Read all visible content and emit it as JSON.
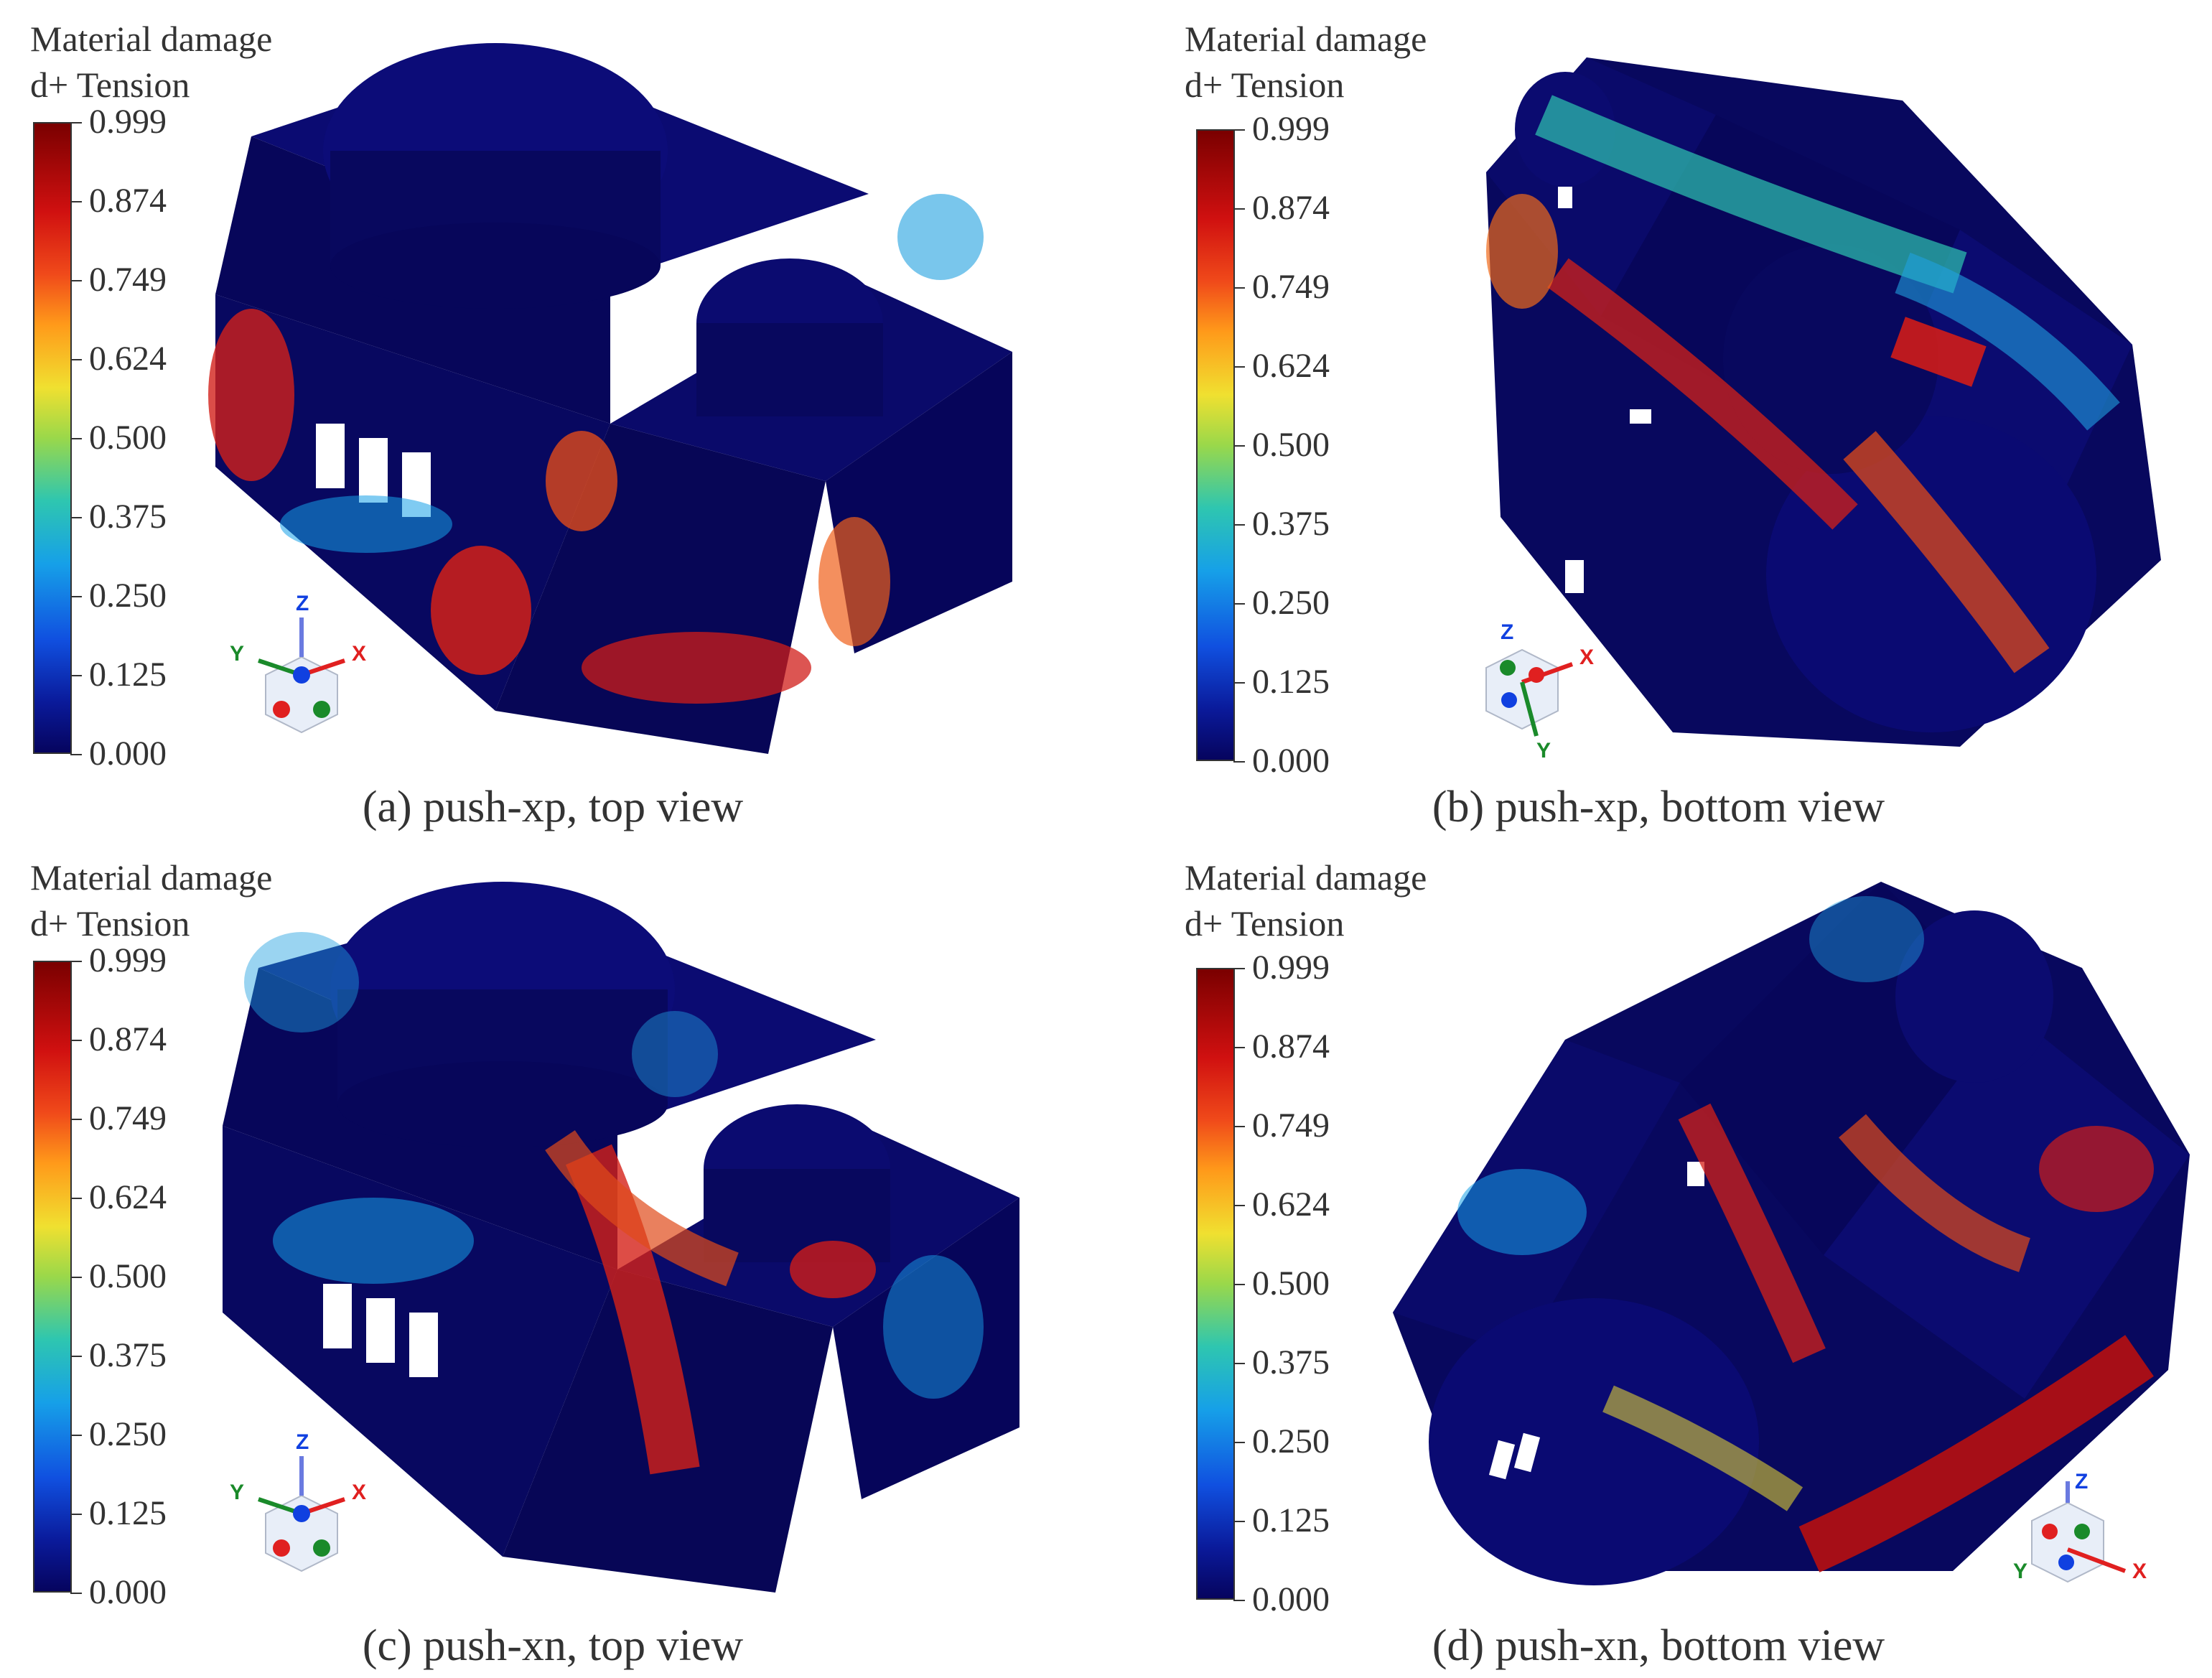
{
  "legend": {
    "title_line1": "Material damage",
    "title_line2": "d+ Tension",
    "ticks": [
      "0.999",
      "0.874",
      "0.749",
      "0.624",
      "0.500",
      "0.375",
      "0.250",
      "0.125",
      "0.000"
    ]
  },
  "axes": {
    "x": "X",
    "y": "Y",
    "z": "Z"
  },
  "panels": [
    {
      "caption": "(a) push-xp, top view"
    },
    {
      "caption": "(b) push-xp, bottom view"
    },
    {
      "caption": "(c) push-xn, top view"
    },
    {
      "caption": "(d) push-xn, bottom view"
    }
  ],
  "colors": {
    "low": "#06045e",
    "mid": "#2ec6b0",
    "high": "#d01010",
    "background": "#ffffff"
  }
}
